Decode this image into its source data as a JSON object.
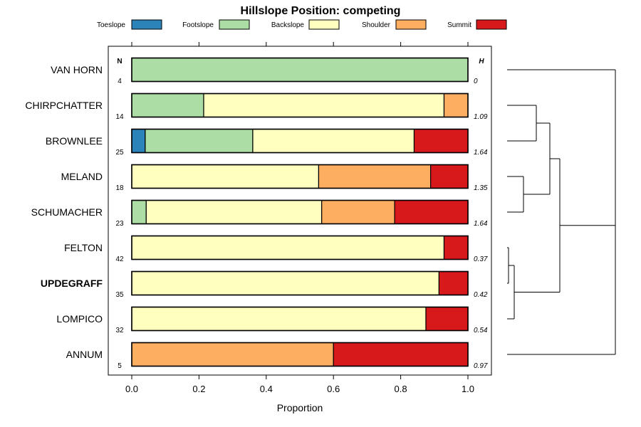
{
  "chart_data": {
    "type": "bar",
    "stacked": true,
    "orientation": "horizontal",
    "title": "Hillslope Position: competing",
    "xlabel": "Proportion",
    "ylabel": "",
    "xlim": [
      0,
      1
    ],
    "x_ticks": [
      "0.0",
      "0.2",
      "0.4",
      "0.6",
      "0.8",
      "1.0"
    ],
    "legend_position": "top",
    "series": [
      {
        "name": "Toeslope",
        "color": "#2b83ba"
      },
      {
        "name": "Footslope",
        "color": "#abdda4"
      },
      {
        "name": "Backslope",
        "color": "#ffffbf"
      },
      {
        "name": "Shoulder",
        "color": "#fdae61"
      },
      {
        "name": "Summit",
        "color": "#d7191c"
      }
    ],
    "n_header": "N",
    "h_header": "H",
    "categories": [
      {
        "name": "VAN HORN",
        "n": "4",
        "h": "0",
        "bold": false,
        "values": [
          0,
          1.0,
          0,
          0,
          0
        ]
      },
      {
        "name": "CHIRPCHATTER",
        "n": "14",
        "h": "1.09",
        "bold": false,
        "values": [
          0,
          0.214,
          0.715,
          0.071,
          0
        ]
      },
      {
        "name": "BROWNLEE",
        "n": "25",
        "h": "1.64",
        "bold": false,
        "values": [
          0.04,
          0.32,
          0.48,
          0,
          0.16
        ]
      },
      {
        "name": "MELAND",
        "n": "18",
        "h": "1.35",
        "bold": false,
        "values": [
          0,
          0,
          0.556,
          0.333,
          0.111
        ]
      },
      {
        "name": "SCHUMACHER",
        "n": "23",
        "h": "1.64",
        "bold": false,
        "values": [
          0,
          0.043,
          0.522,
          0.217,
          0.218
        ]
      },
      {
        "name": "FELTON",
        "n": "42",
        "h": "0.37",
        "bold": false,
        "values": [
          0,
          0,
          0.929,
          0,
          0.071
        ]
      },
      {
        "name": "UPDEGRAFF",
        "n": "35",
        "h": "0.42",
        "bold": true,
        "values": [
          0,
          0,
          0.914,
          0,
          0.086
        ]
      },
      {
        "name": "LOMPICO",
        "n": "32",
        "h": "0.54",
        "bold": false,
        "values": [
          0,
          0,
          0.875,
          0,
          0.125
        ]
      },
      {
        "name": "ANNUM",
        "n": "5",
        "h": "0.97",
        "bold": false,
        "values": [
          0,
          0,
          0,
          0.6,
          0.4
        ]
      }
    ],
    "dendrogram": {
      "description": "hierarchical clustering of the series rows",
      "merges": [
        [
          [
            "FELTON",
            "UPDEGRAFF"
          ],
          1
        ],
        [
          [
            [
              "FELTON",
              "UPDEGRAFF"
            ],
            "LOMPICO"
          ],
          2
        ],
        [
          [
            "CHIRPCHATTER",
            "BROWNLEE"
          ],
          3
        ],
        [
          [
            "MELAND",
            "SCHUMACHER"
          ],
          2
        ],
        [
          [
            [
              "CHIRPCHATTER",
              "BROWNLEE"
            ],
            [
              "MELAND",
              "SCHUMACHER"
            ]
          ],
          4
        ],
        [
          [
            [
              "CHIRPCHATTER",
              "BROWNLEE",
              "MELAND",
              "SCHUMACHER"
            ],
            [
              "FELTON",
              "UPDEGRAFF",
              "LOMPICO"
            ]
          ],
          7
        ],
        [
          [
            "VAN HORN",
            [
              "CHIRPCHATTER",
              "BROWNLEE",
              "MELAND",
              "SCHUMACHER",
              "FELTON",
              "UPDEGRAFF",
              "LOMPICO"
            ]
          ],
          15
        ],
        [
          [
            "ROOT",
            "ANNUM"
          ],
          15
        ]
      ]
    }
  }
}
